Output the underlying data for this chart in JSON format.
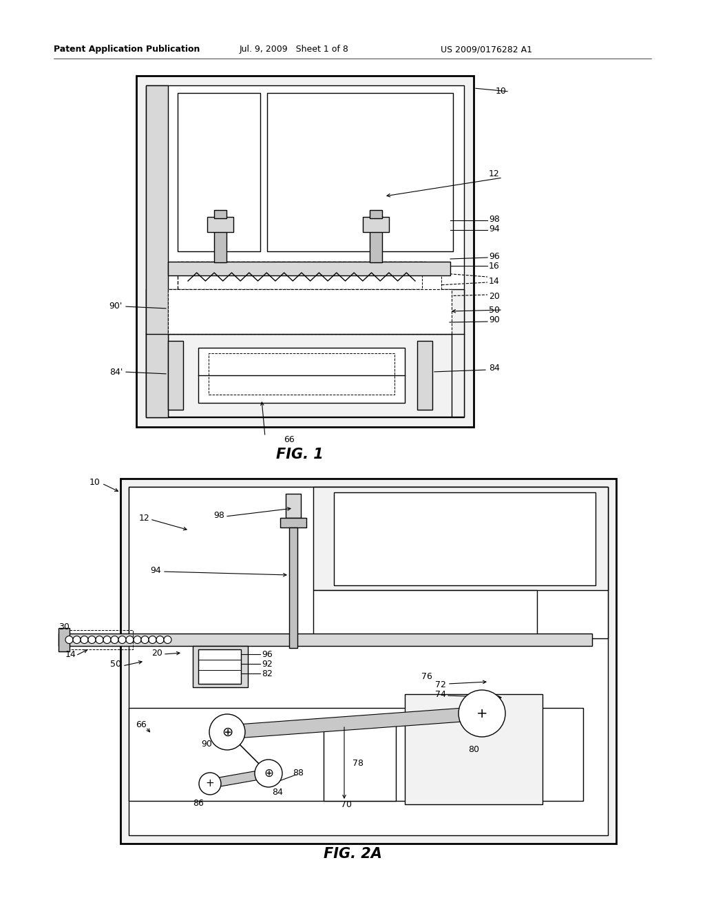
{
  "background_color": "#ffffff",
  "header_left": "Patent Application Publication",
  "header_mid": "Jul. 9, 2009   Sheet 1 of 8",
  "header_right": "US 2009/0176282 A1",
  "fig1_title": "FIG. 1",
  "fig2_title": "FIG. 2A",
  "lw_main": 1.5,
  "lw_thin": 1.0,
  "lw_thick": 2.0,
  "gray_light": "#d8d8d8",
  "gray_mid": "#c0c0c0",
  "gray_dark": "#a0a0a0",
  "white": "#ffffff",
  "near_white": "#f2f2f2"
}
